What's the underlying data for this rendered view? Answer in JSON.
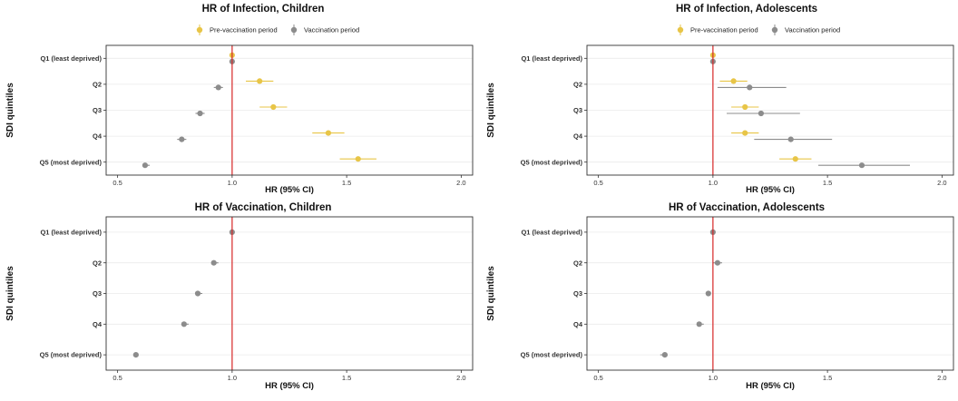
{
  "colors": {
    "pre_vaccination": "#E8C547",
    "vaccination": "#8C8C8C",
    "reference_line": "#D62728",
    "panel_border": "#333333",
    "gridline": "#EBEBEB"
  },
  "chart_data": [
    {
      "type": "scatter",
      "subtype": "forest-plot",
      "title": "HR of Infection, Children",
      "xlabel": "HR (95% CI)",
      "ylabel": "SDI quintiles",
      "xlim": [
        0.45,
        2.05
      ],
      "xticks": [
        "0.5",
        "1.0",
        "1.5",
        "2.0"
      ],
      "xtick_values": [
        0.5,
        1.0,
        1.5,
        2.0
      ],
      "reference_line": 1.0,
      "categories": [
        "Q1 (least deprived)",
        "Q2",
        "Q3",
        "Q4",
        "Q5 (most deprived)"
      ],
      "legend": [
        "Pre-vaccination period",
        "Vaccination period"
      ],
      "series": [
        {
          "name": "Pre-vaccination period",
          "color_key": "pre_vaccination",
          "values": [
            1.0,
            1.12,
            1.18,
            1.42,
            1.55
          ],
          "lower": [
            1.0,
            1.06,
            1.12,
            1.35,
            1.47
          ],
          "upper": [
            1.0,
            1.18,
            1.24,
            1.49,
            1.63
          ]
        },
        {
          "name": "Vaccination period",
          "color_key": "vaccination",
          "values": [
            1.0,
            0.94,
            0.86,
            0.78,
            0.62
          ],
          "lower": [
            1.0,
            0.92,
            0.84,
            0.76,
            0.61
          ],
          "upper": [
            1.0,
            0.96,
            0.88,
            0.8,
            0.64
          ]
        }
      ]
    },
    {
      "type": "scatter",
      "subtype": "forest-plot",
      "title": "HR of Infection, Adolescents",
      "xlabel": "HR (95% CI)",
      "ylabel": "SDI quintiles",
      "xlim": [
        0.45,
        2.05
      ],
      "xticks": [
        "0.5",
        "1.0",
        "1.5",
        "2.0"
      ],
      "xtick_values": [
        0.5,
        1.0,
        1.5,
        2.0
      ],
      "reference_line": 1.0,
      "categories": [
        "Q1 (least deprived)",
        "Q2",
        "Q3",
        "Q4",
        "Q5 (most deprived)"
      ],
      "legend": [
        "Pre-vaccination period",
        "Vaccination period"
      ],
      "series": [
        {
          "name": "Pre-vaccination period",
          "color_key": "pre_vaccination",
          "values": [
            1.0,
            1.09,
            1.14,
            1.14,
            1.36
          ],
          "lower": [
            1.0,
            1.03,
            1.08,
            1.08,
            1.29
          ],
          "upper": [
            1.0,
            1.15,
            1.2,
            1.2,
            1.43
          ]
        },
        {
          "name": "Vaccination period",
          "color_key": "vaccination",
          "values": [
            1.0,
            1.16,
            1.21,
            1.34,
            1.65
          ],
          "lower": [
            1.0,
            1.02,
            1.06,
            1.18,
            1.46
          ],
          "upper": [
            1.0,
            1.32,
            1.38,
            1.52,
            1.86
          ]
        }
      ]
    },
    {
      "type": "scatter",
      "subtype": "forest-plot",
      "title": "HR of Vaccination, Children",
      "xlabel": "HR (95% CI)",
      "ylabel": "SDI quintiles",
      "xlim": [
        0.45,
        2.05
      ],
      "xticks": [
        "0.5",
        "1.0",
        "1.5",
        "2.0"
      ],
      "xtick_values": [
        0.5,
        1.0,
        1.5,
        2.0
      ],
      "reference_line": 1.0,
      "categories": [
        "Q1 (least deprived)",
        "Q2",
        "Q3",
        "Q4",
        "Q5 (most deprived)"
      ],
      "legend": [],
      "series": [
        {
          "name": "Vaccination",
          "color_key": "vaccination",
          "values": [
            1.0,
            0.92,
            0.85,
            0.79,
            0.58
          ],
          "lower": [
            1.0,
            0.91,
            0.84,
            0.78,
            0.575
          ],
          "upper": [
            1.0,
            0.94,
            0.87,
            0.81,
            0.585
          ]
        }
      ]
    },
    {
      "type": "scatter",
      "subtype": "forest-plot",
      "title": "HR of Vaccination, Adolescents",
      "xlabel": "HR (95% CI)",
      "ylabel": "SDI quintiles",
      "xlim": [
        0.45,
        2.05
      ],
      "xticks": [
        "0.5",
        "1.0",
        "1.5",
        "2.0"
      ],
      "xtick_values": [
        0.5,
        1.0,
        1.5,
        2.0
      ],
      "reference_line": 1.0,
      "categories": [
        "Q1 (least deprived)",
        "Q2",
        "Q3",
        "Q4",
        "Q5 (most deprived)"
      ],
      "legend": [],
      "series": [
        {
          "name": "Vaccination",
          "color_key": "vaccination",
          "values": [
            1.0,
            1.02,
            0.98,
            0.94,
            0.79
          ],
          "lower": [
            1.0,
            1.0,
            0.97,
            0.93,
            0.77
          ],
          "upper": [
            1.0,
            1.04,
            0.99,
            0.96,
            0.8
          ]
        }
      ]
    }
  ]
}
